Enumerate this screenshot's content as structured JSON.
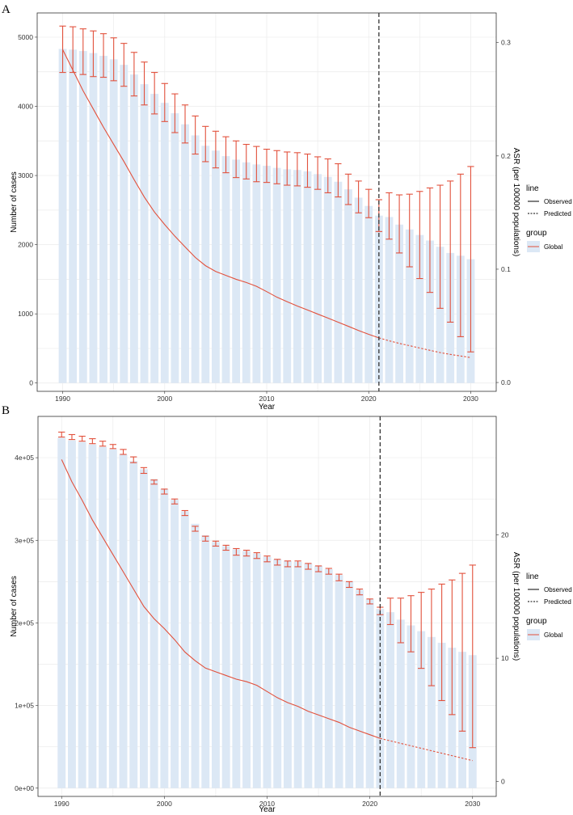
{
  "chart_data": [
    {
      "panel_label": "A",
      "type": "bar",
      "xlabel": "Year",
      "ylabel": "Number of cases",
      "y2label": "ASR (per 100000 populations)",
      "x": [
        1990,
        1991,
        1992,
        1993,
        1994,
        1995,
        1996,
        1997,
        1998,
        1999,
        2000,
        2001,
        2002,
        2003,
        2004,
        2005,
        2006,
        2007,
        2008,
        2009,
        2010,
        2011,
        2012,
        2013,
        2014,
        2015,
        2016,
        2017,
        2018,
        2019,
        2020,
        2021,
        2022,
        2023,
        2024,
        2025,
        2026,
        2027,
        2028,
        2029,
        2030
      ],
      "xticks": [
        "1990",
        "2000",
        "2010",
        "2020",
        "2030"
      ],
      "xlim": [
        1987.5,
        2032.5
      ],
      "ylim": [
        -120,
        5350
      ],
      "yticks": [
        "0",
        "1000",
        "2000",
        "3000",
        "4000",
        "5000"
      ],
      "y2lim": [
        -0.0078,
        0.3262
      ],
      "y2ticks": [
        "0.0",
        "0.1",
        "0.2",
        "0.3"
      ],
      "bars": [
        4830,
        4820,
        4800,
        4770,
        4730,
        4680,
        4600,
        4460,
        4320,
        4180,
        4050,
        3900,
        3740,
        3580,
        3430,
        3360,
        3280,
        3230,
        3190,
        3160,
        3140,
        3110,
        3090,
        3080,
        3060,
        3020,
        2980,
        2910,
        2800,
        2680,
        2560,
        2420,
        2400,
        2290,
        2220,
        2140,
        2060,
        1970,
        1880,
        1840,
        1790
      ],
      "error_lower": [
        4490,
        4490,
        4460,
        4430,
        4420,
        4370,
        4290,
        4150,
        4020,
        3890,
        3780,
        3620,
        3470,
        3310,
        3200,
        3110,
        3040,
        2970,
        2950,
        2910,
        2900,
        2880,
        2860,
        2850,
        2830,
        2800,
        2750,
        2690,
        2580,
        2460,
        2390,
        2190,
        2080,
        1880,
        1680,
        1510,
        1310,
        1080,
        880,
        670,
        450
      ],
      "error_upper": [
        5160,
        5150,
        5120,
        5090,
        5050,
        4990,
        4910,
        4780,
        4640,
        4490,
        4330,
        4180,
        4020,
        3860,
        3710,
        3640,
        3560,
        3500,
        3450,
        3420,
        3380,
        3360,
        3340,
        3330,
        3310,
        3270,
        3240,
        3170,
        3020,
        2920,
        2800,
        2650,
        2750,
        2720,
        2730,
        2770,
        2820,
        2860,
        2920,
        3020,
        3130
      ],
      "series": [
        {
          "name": "Observed",
          "group": "Global",
          "line_style": "solid",
          "x": [
            1990,
            1991,
            1992,
            1993,
            1994,
            1995,
            1996,
            1997,
            1998,
            1999,
            2000,
            2001,
            2002,
            2003,
            2004,
            2005,
            2006,
            2007,
            2008,
            2009,
            2010,
            2011,
            2012,
            2013,
            2014,
            2015,
            2016,
            2017,
            2018,
            2019,
            2020,
            2021
          ],
          "values": [
            0.2938,
            0.2757,
            0.2575,
            0.2414,
            0.2253,
            0.2102,
            0.1951,
            0.1791,
            0.1637,
            0.1504,
            0.1394,
            0.1291,
            0.1197,
            0.1104,
            0.1031,
            0.098,
            0.0945,
            0.0911,
            0.0883,
            0.0849,
            0.0802,
            0.0753,
            0.0713,
            0.0675,
            0.064,
            0.0604,
            0.0569,
            0.0532,
            0.0496,
            0.0459,
            0.0425,
            0.0394
          ]
        },
        {
          "name": "Predicted",
          "group": "Global",
          "line_style": "dashed",
          "x": [
            2021,
            2022,
            2023,
            2024,
            2025,
            2026,
            2027,
            2028,
            2029,
            2030
          ],
          "values": [
            0.0394,
            0.0368,
            0.0345,
            0.0325,
            0.0304,
            0.0284,
            0.0264,
            0.0248,
            0.0234,
            0.022
          ]
        }
      ],
      "vline_x": 2021,
      "colors": {
        "bar": "#dce8f5",
        "line": "#e2513c",
        "error": "#e2513c",
        "vline": "#333333"
      },
      "legend": {
        "line_title": "line",
        "line_items": [
          {
            "label": "Observed",
            "style": "solid"
          },
          {
            "label": "Predicted",
            "style": "dashed"
          }
        ],
        "group_title": "group",
        "group_items": [
          {
            "label": "Global"
          }
        ]
      },
      "grid": true,
      "legend_position": "right"
    },
    {
      "panel_label": "B",
      "type": "bar",
      "xlabel": "Year",
      "ylabel": "Number of cases",
      "y2label": "ASR (per 100000 populations)",
      "x": [
        1990,
        1991,
        1992,
        1993,
        1994,
        1995,
        1996,
        1997,
        1998,
        1999,
        2000,
        2001,
        2002,
        2003,
        2004,
        2005,
        2006,
        2007,
        2008,
        2009,
        2010,
        2011,
        2012,
        2013,
        2014,
        2015,
        2016,
        2017,
        2018,
        2019,
        2020,
        2021,
        2022,
        2023,
        2024,
        2025,
        2026,
        2027,
        2028,
        2029,
        2030
      ],
      "xticks": [
        "1990",
        "2000",
        "2010",
        "2020",
        "2030"
      ],
      "xlim": [
        1987.7,
        2032.3
      ],
      "ylim": [
        -10000,
        450000
      ],
      "yticks": [
        "0e+00",
        "1e+05",
        "2e+05",
        "3e+05",
        "4e+05"
      ],
      "y2lim": [
        -1.2,
        29.6
      ],
      "y2ticks": [
        "0",
        "10",
        "20"
      ],
      "bars": [
        424000,
        421000,
        419000,
        416000,
        413000,
        410000,
        404000,
        396000,
        386000,
        374000,
        362000,
        349000,
        335000,
        320000,
        306000,
        298000,
        293000,
        289000,
        287000,
        284000,
        280000,
        277000,
        275000,
        274000,
        272000,
        269000,
        265000,
        258000,
        250000,
        240000,
        229000,
        217000,
        213000,
        204000,
        197000,
        190000,
        183000,
        176000,
        170000,
        165000,
        161000
      ],
      "error_lower": [
        425000,
        422000,
        420000,
        417000,
        414000,
        411000,
        404000,
        394000,
        381000,
        368000,
        356000,
        344000,
        330000,
        311000,
        299000,
        293000,
        288000,
        282000,
        281000,
        278000,
        274000,
        270000,
        268000,
        268000,
        265000,
        262000,
        259000,
        251000,
        243000,
        234000,
        223000,
        210000,
        198000,
        176000,
        165000,
        145000,
        124000,
        106000,
        89000,
        69000,
        49000
      ],
      "error_upper": [
        431000,
        428000,
        426000,
        423000,
        420000,
        416000,
        410000,
        401000,
        388000,
        373000,
        362000,
        350000,
        336000,
        317000,
        305000,
        299000,
        294000,
        290000,
        288000,
        285000,
        281000,
        277000,
        275000,
        275000,
        272000,
        269000,
        266000,
        259000,
        250000,
        241000,
        229000,
        219000,
        230000,
        230000,
        233000,
        237000,
        241000,
        247000,
        252000,
        260000,
        270000
      ],
      "series": [
        {
          "name": "Observed",
          "group": "Global",
          "line_style": "solid",
          "x": [
            1990,
            1991,
            1992,
            1993,
            1994,
            1995,
            1996,
            1997,
            1998,
            1999,
            2000,
            2001,
            2002,
            2003,
            2004,
            2005,
            2006,
            2007,
            2008,
            2009,
            2010,
            2011,
            2012,
            2013,
            2014,
            2015,
            2016,
            2017,
            2018,
            2019,
            2020,
            2021
          ],
          "values": [
            26.1,
            24.3,
            22.8,
            21.2,
            19.8,
            18.4,
            17.0,
            15.6,
            14.2,
            13.2,
            12.4,
            11.5,
            10.5,
            9.8,
            9.2,
            8.9,
            8.6,
            8.3,
            8.1,
            7.8,
            7.3,
            6.8,
            6.4,
            6.1,
            5.7,
            5.4,
            5.1,
            4.8,
            4.4,
            4.1,
            3.8,
            3.5
          ]
        },
        {
          "name": "Predicted",
          "group": "Global",
          "line_style": "dashed",
          "x": [
            2021,
            2022,
            2023,
            2024,
            2025,
            2026,
            2027,
            2028,
            2029,
            2030
          ],
          "values": [
            3.5,
            3.3,
            3.1,
            2.9,
            2.7,
            2.5,
            2.3,
            2.1,
            1.9,
            1.7
          ]
        }
      ],
      "vline_x": 2021,
      "colors": {
        "bar": "#dce8f5",
        "line": "#e2513c",
        "error": "#e2513c",
        "vline": "#333333"
      },
      "legend": {
        "line_title": "line",
        "line_items": [
          {
            "label": "Observed",
            "style": "solid"
          },
          {
            "label": "Predicted",
            "style": "dashed"
          }
        ],
        "group_title": "group",
        "group_items": [
          {
            "label": "Global"
          }
        ]
      },
      "grid": true,
      "legend_position": "right"
    }
  ]
}
